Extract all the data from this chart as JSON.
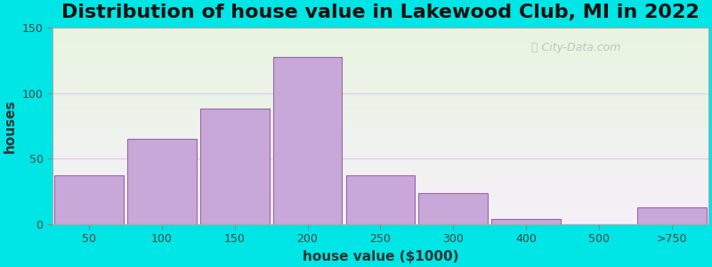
{
  "title": "Distribution of house value in Lakewood Club, MI in 2022",
  "xlabel": "house value ($1000)",
  "ylabel": "houses",
  "bar_labels": [
    "50",
    "100",
    "150",
    "200",
    "250",
    "300",
    "400",
    "500",
    ">750"
  ],
  "bar_values": [
    37,
    65,
    88,
    128,
    37,
    24,
    4,
    0,
    13
  ],
  "bar_color": "#c8a8d8",
  "bar_edgecolor": "#9966aa",
  "ylim": [
    0,
    150
  ],
  "yticks": [
    0,
    50,
    100,
    150
  ],
  "background_outer": "#00e5e5",
  "background_grad_top": "#e8f5e0",
  "background_grad_bottom": "#f5f0f8",
  "title_fontsize": 16,
  "axis_label_fontsize": 11,
  "watermark_text": "ⓒ City-Data.com",
  "watermark_color": "#bbbbbb"
}
